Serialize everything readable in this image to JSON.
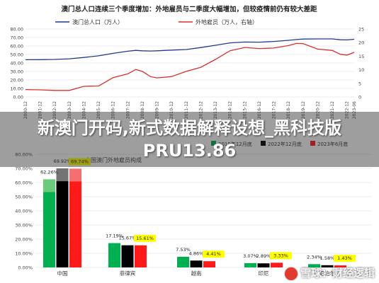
{
  "overlay": {
    "headline": "新澳门开码,新式数据解释设想_黑科技版PRU13.86",
    "watermark": "雪球：财经逻辑"
  },
  "colors": {
    "line_population": "#1f3b8a",
    "line_workers": "#d9302c",
    "bar_2022_12": "#00b050",
    "bar_2022_12_light": "#7fd07f",
    "bar_2023_6": "#ff1a1a",
    "bar_2022_12_dark": "#000000",
    "label_highlight": "#ffff00",
    "grid": "#d9d9d9"
  },
  "chart_data": [
    {
      "type": "line",
      "title": "澳门总人口连续三个季度增加：外地雇员与二季度大幅增加，但较疫情前仍有较大差距",
      "legend_position": "top",
      "series": [
        {
          "name": "澳门总人口（万人）",
          "axis": "left"
        },
        {
          "name": "外地雇员（万人，右轴）",
          "axis": "right"
        }
      ],
      "left_axis": {
        "ylim": [
          0,
          80
        ],
        "ticks": [
          "0.00",
          "10.00",
          "20.00",
          "30.00",
          "40.00",
          "50.00",
          "60.00",
          "70.00",
          "80.00"
        ]
      },
      "right_axis": {
        "ylim": [
          0,
          25
        ],
        "ticks": [
          "0",
          "5",
          "10",
          "15",
          "20",
          "25"
        ]
      },
      "x_ticks": [
        "2000-12",
        "2001-12",
        "2002-12",
        "2003-12",
        "2004-12",
        "2005-12",
        "2006-12",
        "2007-12",
        "2008-12",
        "2009-12",
        "2010-12",
        "2011-12",
        "2012-12",
        "2013-12",
        "2014-12",
        "2015-12",
        "2016-12",
        "2017-12",
        "2018-12",
        "2019-12",
        "2020-12",
        "2021-12",
        "2022-12",
        "2023-06"
      ],
      "x": [
        2000.95,
        2001.95,
        2002.95,
        2003.95,
        2004.95,
        2005.95,
        2006.95,
        2007.95,
        2008.5,
        2008.95,
        2009.5,
        2009.95,
        2010.95,
        2011.95,
        2012.95,
        2013.95,
        2014.95,
        2015.95,
        2016.95,
        2017.95,
        2018.95,
        2019.5,
        2019.95,
        2020.95,
        2021.95,
        2022.5,
        2022.95,
        2023.45
      ],
      "population": [
        43.8,
        43.9,
        44.2,
        44.9,
        46.5,
        48.4,
        51.3,
        53.8,
        54.8,
        54.3,
        54.1,
        54.3,
        55.2,
        55.8,
        58.2,
        60.8,
        63.7,
        64.7,
        64.5,
        65.3,
        66.7,
        67.6,
        68.2,
        68.3,
        68.3,
        67.3,
        67.2,
        67.9
      ],
      "workers": [
        2.7,
        2.6,
        2.4,
        2.4,
        3.9,
        4.0,
        7.1,
        8.5,
        10.1,
        9.4,
        7.5,
        7.0,
        7.5,
        9.4,
        10.9,
        13.8,
        17.0,
        18.2,
        17.8,
        18.0,
        18.9,
        19.7,
        19.6,
        17.6,
        17.1,
        15.7,
        15.4,
        16.4
      ]
    },
    {
      "type": "bar",
      "title": "中国澳门外地雇员构成",
      "legend_position": "top-right",
      "series": [
        {
          "name": "2019年12月底",
          "values": [
            62.26,
            17.19,
            7.53,
            3.07,
            2.34
          ]
        },
        {
          "name": "2022年12月底",
          "values": [
            69.92,
            15.67,
            4.86,
            2.89,
            1.58
          ]
        },
        {
          "name": "2023年6月底",
          "values": [
            69.74,
            15.61,
            4.41,
            3.33,
            1.43
          ]
        }
      ],
      "categories": [
        "中国",
        "菲律宾",
        "越南",
        "印尼",
        "尼泊尔"
      ],
      "ylim": [
        0,
        80
      ],
      "ticks": [
        "0.00%",
        "10.00%",
        "20.00%",
        "30.00%",
        "40.00%",
        "50.00%",
        "60.00%",
        "70.00%",
        "80.00%"
      ],
      "value_labels": [
        [
          "62.26%",
          "69.92%",
          "69.74%"
        ],
        [
          "17.19%",
          "15.67%",
          "15.61%"
        ],
        [
          "7.53%",
          "4.86%",
          "4.41%"
        ],
        [
          "3.07%",
          "2.89%",
          "3.33%"
        ],
        [
          "2.34%",
          "1.58%",
          "1.43%"
        ]
      ]
    }
  ]
}
